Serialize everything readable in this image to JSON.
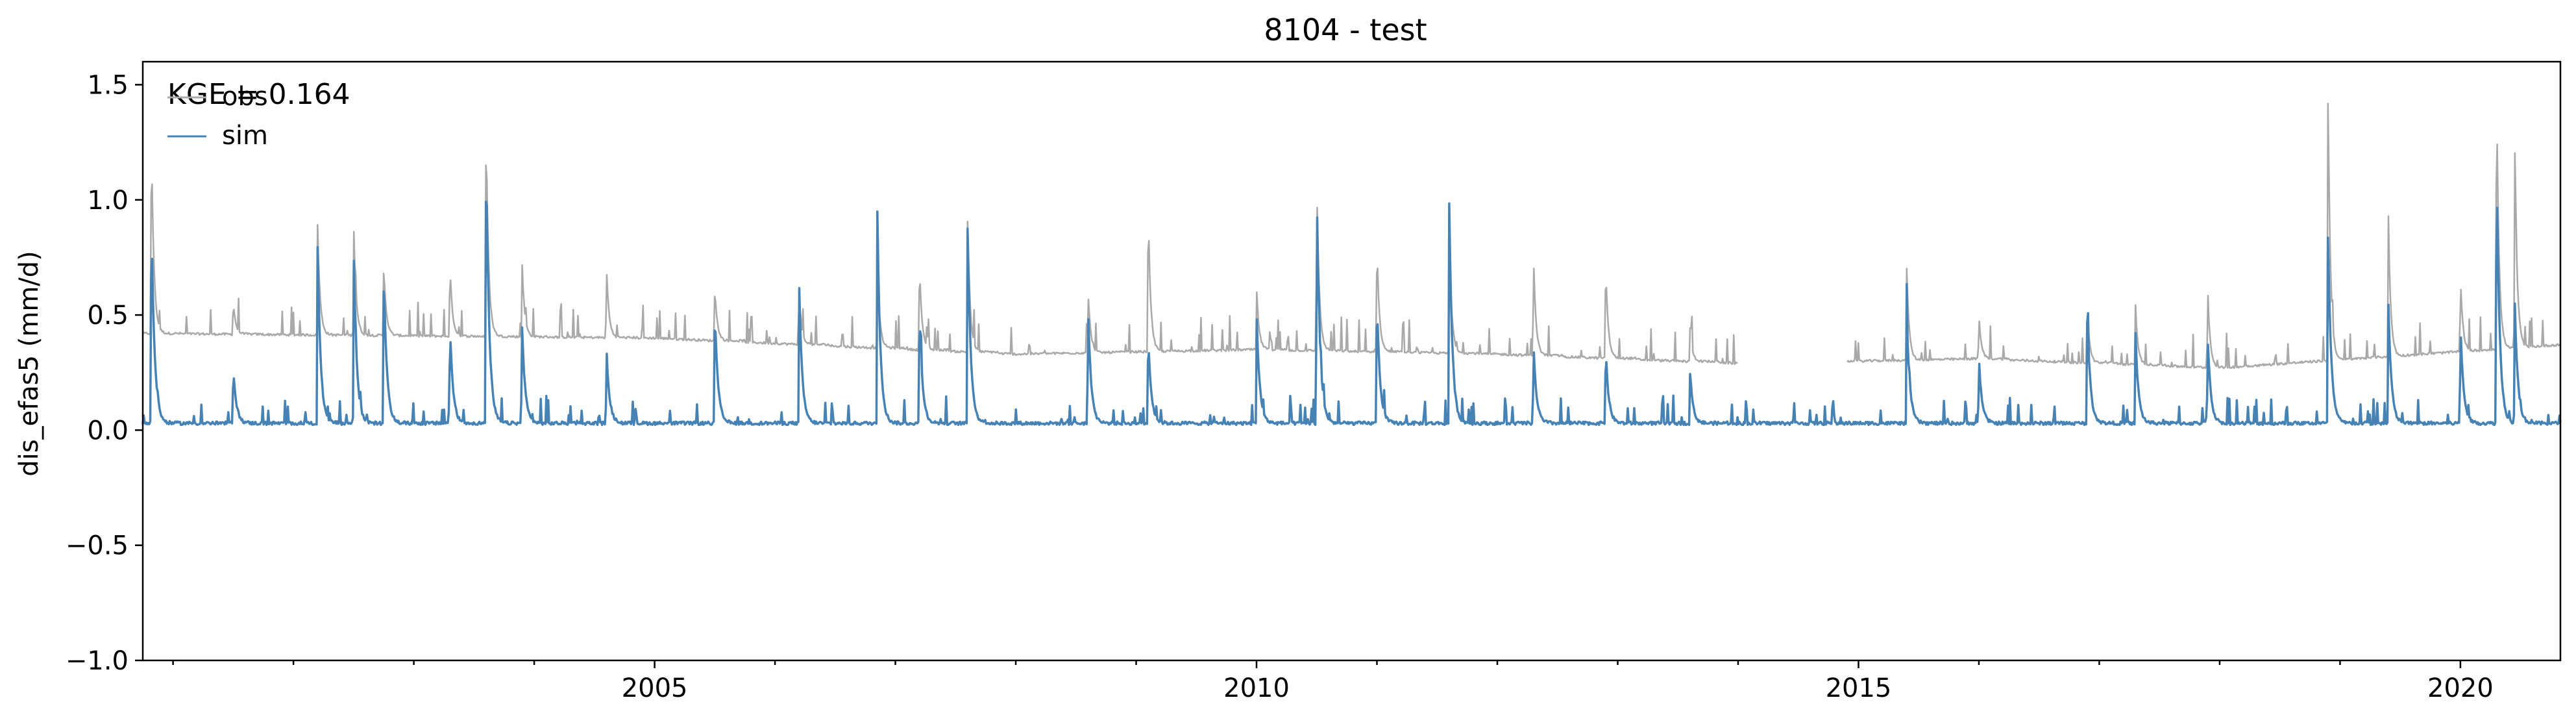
{
  "chart_data": {
    "type": "line",
    "title": "8104 - test",
    "xlabel": "",
    "ylabel": "dis_efas5 (mm/d)",
    "xlim": [
      "2000-10-01",
      "2020-10-31"
    ],
    "ylim": [
      -1.0,
      1.6
    ],
    "x_ticks": [
      "2005",
      "2010",
      "2015",
      "2020"
    ],
    "y_ticks": [
      "−1.0",
      "−0.5",
      "0.0",
      "0.5",
      "1.0",
      "1.5"
    ],
    "grid": false,
    "legend_position": "top-left",
    "annotation": "KGE = 0.164",
    "colors": {
      "obs": "#a9a9a9",
      "sim": "#4682b4"
    },
    "series": [
      {
        "name": "obs",
        "baseline": [
          [
            2000.75,
            0.42
          ],
          [
            2005.0,
            0.4
          ],
          [
            2008.0,
            0.33
          ],
          [
            2010.0,
            0.35
          ],
          [
            2012.0,
            0.33
          ],
          [
            2014.0,
            0.29
          ],
          [
            2016.0,
            0.31
          ],
          [
            2018.0,
            0.27
          ],
          [
            2020.8,
            0.37
          ]
        ],
        "gap": [
          2014.0,
          2014.9
        ],
        "peaks": [
          [
            2000.82,
            1.29
          ],
          [
            2001.5,
            0.56
          ],
          [
            2002.2,
            0.91
          ],
          [
            2002.5,
            0.91
          ],
          [
            2002.75,
            0.73
          ],
          [
            2003.3,
            0.72
          ],
          [
            2003.6,
            1.35
          ],
          [
            2003.9,
            0.72
          ],
          [
            2004.6,
            0.72
          ],
          [
            2005.5,
            0.63
          ],
          [
            2006.2,
            0.6
          ],
          [
            2006.85,
            0.72
          ],
          [
            2007.2,
            0.73
          ],
          [
            2007.6,
            0.94
          ],
          [
            2008.6,
            0.62
          ],
          [
            2009.1,
            0.98
          ],
          [
            2010.0,
            0.62
          ],
          [
            2010.5,
            1.1
          ],
          [
            2011.0,
            0.82
          ],
          [
            2011.6,
            0.88
          ],
          [
            2012.3,
            0.78
          ],
          [
            2012.9,
            0.73
          ],
          [
            2013.6,
            0.45
          ],
          [
            2015.4,
            0.72
          ],
          [
            2016.0,
            0.5
          ],
          [
            2016.9,
            0.52
          ],
          [
            2017.3,
            0.55
          ],
          [
            2017.9,
            0.63
          ],
          [
            2018.9,
            1.49
          ],
          [
            2019.4,
            0.95
          ],
          [
            2020.0,
            0.67
          ],
          [
            2020.3,
            1.51
          ],
          [
            2020.45,
            1.3
          ]
        ]
      },
      {
        "name": "sim",
        "baseline": [
          [
            2000.75,
            0.03
          ],
          [
            2020.8,
            0.03
          ]
        ],
        "peaks": [
          [
            2000.82,
            0.94
          ],
          [
            2001.5,
            0.28
          ],
          [
            2002.2,
            0.82
          ],
          [
            2002.5,
            0.79
          ],
          [
            2002.75,
            0.7
          ],
          [
            2003.3,
            0.46
          ],
          [
            2003.6,
            1.25
          ],
          [
            2003.9,
            0.45
          ],
          [
            2004.6,
            0.36
          ],
          [
            2005.5,
            0.54
          ],
          [
            2006.2,
            0.65
          ],
          [
            2006.85,
            0.96
          ],
          [
            2007.2,
            0.53
          ],
          [
            2007.6,
            0.92
          ],
          [
            2008.6,
            0.55
          ],
          [
            2009.1,
            0.42
          ],
          [
            2010.0,
            0.52
          ],
          [
            2010.5,
            1.07
          ],
          [
            2011.0,
            0.58
          ],
          [
            2011.6,
            1.01
          ],
          [
            2012.3,
            0.38
          ],
          [
            2012.9,
            0.35
          ],
          [
            2013.6,
            0.25
          ],
          [
            2015.4,
            0.53
          ],
          [
            2016.0,
            0.32
          ],
          [
            2016.9,
            0.53
          ],
          [
            2017.3,
            0.43
          ],
          [
            2017.9,
            0.42
          ],
          [
            2018.9,
            0.88
          ],
          [
            2019.4,
            0.58
          ],
          [
            2020.0,
            0.47
          ],
          [
            2020.3,
            1.19
          ],
          [
            2020.45,
            0.6
          ]
        ]
      }
    ]
  }
}
